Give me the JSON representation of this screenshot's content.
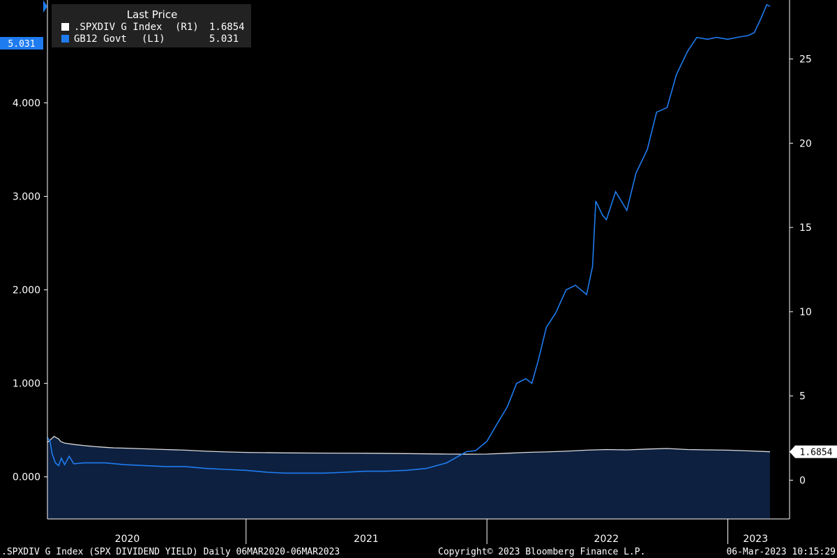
{
  "chart_data": {
    "type": "line",
    "legend": {
      "title": "Last Price",
      "placement": "top-left",
      "entries": [
        {
          "color": "#ffffff",
          "name": ".SPXDIV G Index",
          "axis": "(R1)",
          "value": "1.6854"
        },
        {
          "color": "#1f7cf0",
          "name": "GB12 Govt",
          "axis": "(L1)",
          "value": "5.031"
        }
      ]
    },
    "left_axis": {
      "range": [
        -0.45,
        5.1
      ],
      "ticks": [
        0,
        1,
        2,
        3,
        4
      ],
      "tick_labels": [
        "0.000",
        "1.000",
        "2.000",
        "3.000",
        "4.000"
      ],
      "last_value_label": "5.031",
      "last_value": 5.031
    },
    "right_axis": {
      "range": [
        -2.3,
        28.5
      ],
      "ticks": [
        0,
        5,
        10,
        15,
        20,
        25
      ],
      "tick_labels": [
        "0",
        "5",
        "10",
        "15",
        "20",
        "25"
      ],
      "last_value_label": "1.6854",
      "last_value": 1.6854
    },
    "x_axis": {
      "range": [
        "2020-03-06",
        "2023-03-06"
      ],
      "year_labels": [
        {
          "label": "2020",
          "date": "2020-07-05"
        },
        {
          "label": "2021",
          "date": "2021-07-02"
        },
        {
          "label": "2022",
          "date": "2022-07-01"
        },
        {
          "label": "2023",
          "date": "2023-02-12"
        }
      ],
      "year_boundaries": [
        "2021-01-01",
        "2022-01-01",
        "2023-01-01"
      ]
    },
    "grid": false,
    "series": [
      {
        "name": ".SPXDIV G Index",
        "axis": "right",
        "style": "area",
        "color": "#dcdcdc",
        "fill": "#0d2040",
        "points": [
          [
            "2020-03-06",
            2.25
          ],
          [
            "2020-03-09",
            2.35
          ],
          [
            "2020-03-12",
            2.45
          ],
          [
            "2020-03-16",
            2.6
          ],
          [
            "2020-03-18",
            2.55
          ],
          [
            "2020-03-23",
            2.45
          ],
          [
            "2020-03-26",
            2.3
          ],
          [
            "2020-04-01",
            2.2
          ],
          [
            "2020-04-15",
            2.12
          ],
          [
            "2020-05-01",
            2.05
          ],
          [
            "2020-05-15",
            2.0
          ],
          [
            "2020-06-01",
            1.95
          ],
          [
            "2020-06-15",
            1.92
          ],
          [
            "2020-07-01",
            1.9
          ],
          [
            "2020-08-01",
            1.86
          ],
          [
            "2020-09-01",
            1.82
          ],
          [
            "2020-10-01",
            1.78
          ],
          [
            "2020-11-01",
            1.72
          ],
          [
            "2020-12-01",
            1.68
          ],
          [
            "2021-01-01",
            1.65
          ],
          [
            "2021-03-01",
            1.62
          ],
          [
            "2021-05-01",
            1.61
          ],
          [
            "2021-07-01",
            1.6
          ],
          [
            "2021-09-01",
            1.58
          ],
          [
            "2021-11-01",
            1.55
          ],
          [
            "2021-12-01",
            1.54
          ],
          [
            "2022-01-01",
            1.55
          ],
          [
            "2022-02-01",
            1.6
          ],
          [
            "2022-03-01",
            1.65
          ],
          [
            "2022-04-01",
            1.68
          ],
          [
            "2022-05-01",
            1.72
          ],
          [
            "2022-06-01",
            1.78
          ],
          [
            "2022-07-01",
            1.82
          ],
          [
            "2022-08-01",
            1.8
          ],
          [
            "2022-09-01",
            1.85
          ],
          [
            "2022-10-01",
            1.88
          ],
          [
            "2022-11-01",
            1.82
          ],
          [
            "2022-12-01",
            1.8
          ],
          [
            "2023-01-01",
            1.78
          ],
          [
            "2023-02-01",
            1.74
          ],
          [
            "2023-03-06",
            1.6854
          ]
        ]
      },
      {
        "name": "GB12 Govt",
        "axis": "left",
        "style": "line",
        "color": "#1f7cf0",
        "points": [
          [
            "2020-03-06",
            0.42
          ],
          [
            "2020-03-10",
            0.38
          ],
          [
            "2020-03-13",
            0.25
          ],
          [
            "2020-03-18",
            0.15
          ],
          [
            "2020-03-23",
            0.12
          ],
          [
            "2020-03-27",
            0.2
          ],
          [
            "2020-04-01",
            0.13
          ],
          [
            "2020-04-08",
            0.22
          ],
          [
            "2020-04-15",
            0.14
          ],
          [
            "2020-05-01",
            0.15
          ],
          [
            "2020-06-01",
            0.15
          ],
          [
            "2020-07-01",
            0.13
          ],
          [
            "2020-08-01",
            0.12
          ],
          [
            "2020-09-01",
            0.11
          ],
          [
            "2020-10-01",
            0.11
          ],
          [
            "2020-11-01",
            0.09
          ],
          [
            "2020-12-01",
            0.08
          ],
          [
            "2021-01-01",
            0.07
          ],
          [
            "2021-02-01",
            0.05
          ],
          [
            "2021-03-01",
            0.04
          ],
          [
            "2021-04-01",
            0.04
          ],
          [
            "2021-05-01",
            0.04
          ],
          [
            "2021-06-01",
            0.05
          ],
          [
            "2021-07-01",
            0.06
          ],
          [
            "2021-08-01",
            0.06
          ],
          [
            "2021-09-01",
            0.07
          ],
          [
            "2021-10-01",
            0.09
          ],
          [
            "2021-11-01",
            0.15
          ],
          [
            "2021-12-01",
            0.27
          ],
          [
            "2021-12-15",
            0.28
          ],
          [
            "2022-01-01",
            0.38
          ],
          [
            "2022-01-15",
            0.55
          ],
          [
            "2022-02-01",
            0.75
          ],
          [
            "2022-02-15",
            1.0
          ],
          [
            "2022-03-01",
            1.05
          ],
          [
            "2022-03-10",
            1.0
          ],
          [
            "2022-03-20",
            1.25
          ],
          [
            "2022-04-01",
            1.6
          ],
          [
            "2022-04-15",
            1.75
          ],
          [
            "2022-05-01",
            2.0
          ],
          [
            "2022-05-15",
            2.05
          ],
          [
            "2022-06-01",
            1.95
          ],
          [
            "2022-06-10",
            2.25
          ],
          [
            "2022-06-15",
            2.95
          ],
          [
            "2022-06-25",
            2.8
          ],
          [
            "2022-07-01",
            2.75
          ],
          [
            "2022-07-15",
            3.05
          ],
          [
            "2022-08-01",
            2.85
          ],
          [
            "2022-08-15",
            3.25
          ],
          [
            "2022-09-01",
            3.5
          ],
          [
            "2022-09-15",
            3.9
          ],
          [
            "2022-10-01",
            3.95
          ],
          [
            "2022-10-15",
            4.3
          ],
          [
            "2022-11-01",
            4.55
          ],
          [
            "2022-11-15",
            4.7
          ],
          [
            "2022-12-01",
            4.68
          ],
          [
            "2022-12-15",
            4.7
          ],
          [
            "2023-01-01",
            4.68
          ],
          [
            "2023-01-15",
            4.7
          ],
          [
            "2023-02-01",
            4.72
          ],
          [
            "2023-02-10",
            4.75
          ],
          [
            "2023-02-20",
            4.9
          ],
          [
            "2023-03-01",
            5.05
          ],
          [
            "2023-03-06",
            5.031
          ]
        ]
      }
    ]
  },
  "footer": {
    "left": ".SPXDIV G Index (SPX DIVIDEND YIELD)  Daily 06MAR2020-06MAR2023",
    "center": "Copyright© 2023 Bloomberg Finance L.P.",
    "right": "06-Mar-2023 10:15:29"
  }
}
